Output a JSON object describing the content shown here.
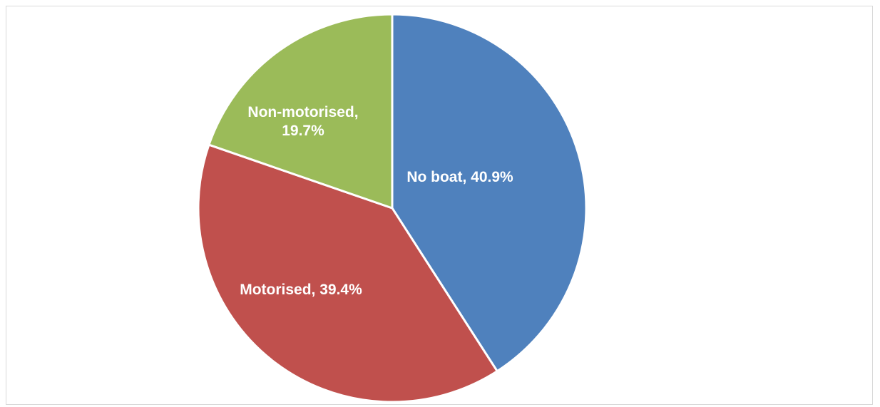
{
  "chart_data": {
    "type": "pie",
    "title": "",
    "start_angle_deg": 0,
    "direction": "clockwise",
    "slices": [
      {
        "name": "No boat",
        "value": 40.9,
        "label_lines": [
          "No boat, 40.9%"
        ],
        "color": "#4f81bd"
      },
      {
        "name": "Motorised",
        "value": 39.4,
        "label_lines": [
          "Motorised, 39.4%"
        ],
        "color": "#c0504d"
      },
      {
        "name": "Non-motorised",
        "value": 19.7,
        "label_lines": [
          "Non-motorised,",
          "19.7%"
        ],
        "color": "#9bbb59"
      }
    ],
    "legend": "none",
    "slice_border_color": "#ffffff"
  }
}
